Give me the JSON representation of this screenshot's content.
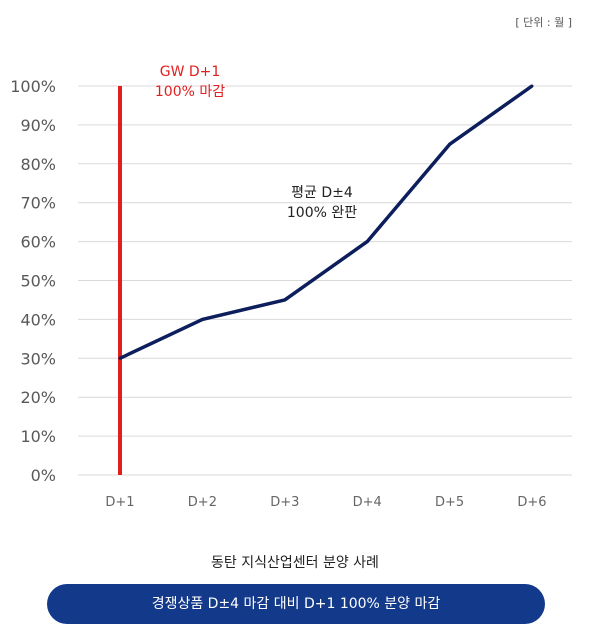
{
  "unit_note": "[ 단위 : 월 ]",
  "caption": "동탄 지식산업센터 분양 사례",
  "banner": "경쟁상품 D±4 마감 대비 D+1 100% 분양 마감",
  "colors": {
    "series_line": "#0d1e5c",
    "marker_line": "#e01f1f",
    "banner": "#13398a",
    "grid": "#d9d9d9"
  },
  "chart_data": {
    "type": "line",
    "title": "",
    "xlabel": "",
    "ylabel": "",
    "categories": [
      "D+1",
      "D+2",
      "D+3",
      "D+4",
      "D+5",
      "D+6"
    ],
    "yticks": [
      "0%",
      "10%",
      "20%",
      "30%",
      "40%",
      "50%",
      "60%",
      "70%",
      "80%",
      "90%",
      "100%"
    ],
    "ylim": [
      0,
      100
    ],
    "grid": true,
    "series": [
      {
        "values": [
          30,
          40,
          45,
          60,
          85,
          100
        ]
      }
    ],
    "vertical_marker": {
      "category": "D+1",
      "from": 0,
      "to": 100
    },
    "annotations": [
      {
        "lines": [
          "GW D+1",
          "100% 마감"
        ],
        "color": "#e01f1f"
      },
      {
        "lines": [
          "평균 D±4",
          "100% 완판"
        ],
        "color": "#222222"
      }
    ]
  }
}
